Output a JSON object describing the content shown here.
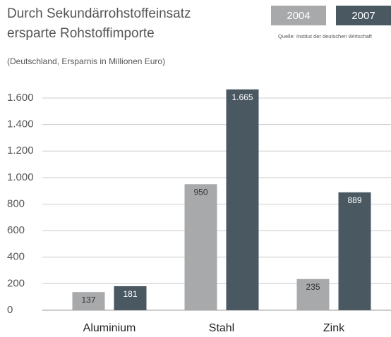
{
  "chart_data": {
    "type": "bar",
    "title": [
      "Durch Sekundärrohstoffeinsatz",
      "ersparte Rohstoffimporte"
    ],
    "subtitle": "(Deutschland, Ersparnis in Millionen Euro)",
    "source": "Quelle: Institut der deutschen Wirtschaft",
    "categories": [
      "Aluminium",
      "Stahl",
      "Zink"
    ],
    "series": [
      {
        "name": "2004",
        "color": "#a7a9ab",
        "values": [
          137,
          950,
          235
        ],
        "value_labels": [
          "137",
          "950",
          "235"
        ]
      },
      {
        "name": "2007",
        "color": "#4a5862",
        "values": [
          181,
          1665,
          889
        ],
        "value_labels": [
          "181",
          "1.665",
          "889"
        ]
      }
    ],
    "ylim": [
      0,
      1600
    ],
    "yticks": [
      0,
      200,
      400,
      600,
      800,
      {
        "value": 1000,
        "label": "1.000"
      },
      {
        "value": 1200,
        "label": "1.200"
      },
      {
        "value": 1400,
        "label": "1.400"
      },
      {
        "value": 1600,
        "label": "1.600"
      }
    ],
    "grid": true
  }
}
